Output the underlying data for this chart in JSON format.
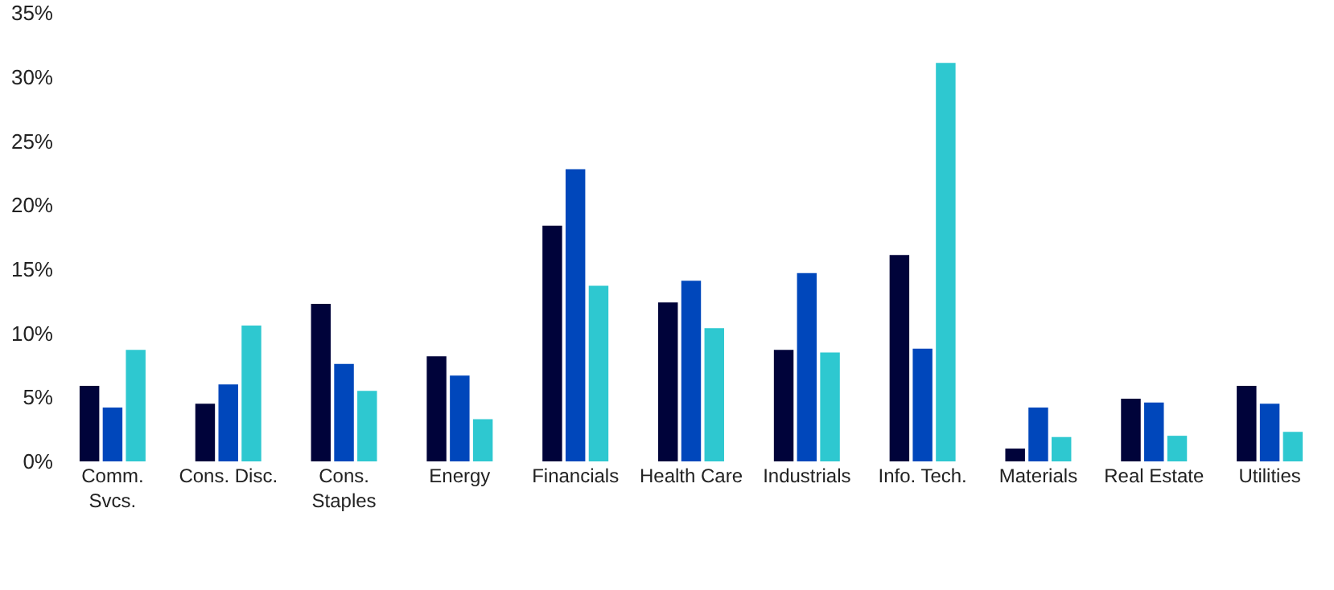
{
  "chart_data": {
    "type": "bar",
    "categories": [
      "Comm.\nSvcs.",
      "Cons. Disc.",
      "Cons.\nStaples",
      "Energy",
      "Financials",
      "Health Care",
      "Industrials",
      "Info. Tech.",
      "Materials",
      "Real Estate",
      "Utilities"
    ],
    "series": [
      {
        "color": "#00033a",
        "values": [
          5.9,
          4.5,
          12.3,
          8.2,
          18.4,
          12.4,
          8.7,
          16.1,
          1.0,
          4.9,
          5.9
        ]
      },
      {
        "color": "#0047bb",
        "values": [
          4.2,
          6.0,
          7.6,
          6.7,
          22.8,
          14.1,
          14.7,
          8.8,
          4.2,
          4.6,
          4.5
        ]
      },
      {
        "color": "#2ec8d0",
        "values": [
          8.7,
          10.6,
          5.5,
          3.3,
          13.7,
          10.4,
          8.5,
          31.1,
          1.9,
          2.0,
          2.3
        ]
      }
    ],
    "ylim": [
      0,
      35
    ],
    "yticks": [
      {
        "value": 0,
        "label": "0%"
      },
      {
        "value": 5,
        "label": "5%"
      },
      {
        "value": 10,
        "label": "10%"
      },
      {
        "value": 15,
        "label": "15%"
      },
      {
        "value": 20,
        "label": "20%"
      },
      {
        "value": 25,
        "label": "25%"
      },
      {
        "value": 30,
        "label": "30%"
      },
      {
        "value": 35,
        "label": "35%"
      }
    ],
    "grid": false
  }
}
